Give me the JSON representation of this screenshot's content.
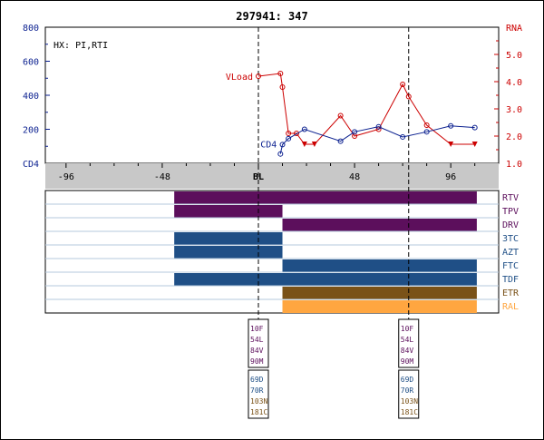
{
  "title": "297941: 347",
  "annotation": "HX: PI,RTI",
  "colors": {
    "cd4": "#0a1f8f",
    "rna": "#cc0000",
    "axis_band": "#c8c8c8",
    "grid_line": "#b4c8dc",
    "rtv": "#5c0f5c",
    "tpv": "#5c0f5c",
    "drv": "#5c0f5c",
    "tc3": "#1f4f86",
    "azt": "#1f4f86",
    "ftc": "#1f4f86",
    "tdf": "#1f4f86",
    "etr": "#7a5218",
    "ral": "#ffa640"
  },
  "chart_data": {
    "type": "line",
    "title": "297941: 347",
    "x_ticks": [
      "-96",
      "-48",
      "BL",
      "48",
      "96"
    ],
    "xlim": [
      -105,
      120
    ],
    "left_axis": {
      "name": "CD4",
      "ticks": [
        "800",
        "600",
        "400",
        "200",
        "CD4"
      ],
      "ylim": [
        0,
        800
      ]
    },
    "right_axis": {
      "name": "RNA",
      "ticks": [
        "RNA",
        "5.0",
        "4.0",
        "3.0",
        "2.0",
        "1.0"
      ],
      "ylim": [
        1.0,
        6.0
      ]
    },
    "series": [
      {
        "name": "VLoad",
        "axis": "right",
        "points": [
          [
            0,
            4.2
          ],
          [
            11,
            4.3
          ],
          [
            12,
            3.8
          ],
          [
            15,
            2.1
          ],
          [
            19,
            2.1
          ],
          [
            23,
            1.7
          ],
          [
            28,
            1.7
          ],
          [
            41,
            2.75
          ],
          [
            48,
            2.0
          ],
          [
            60,
            2.25
          ],
          [
            72,
            3.9
          ],
          [
            75,
            3.45
          ],
          [
            84,
            2.4
          ],
          [
            96,
            1.7
          ],
          [
            108,
            1.7
          ]
        ]
      },
      {
        "name": "CD4",
        "axis": "left",
        "points": [
          [
            11,
            55
          ],
          [
            12,
            110
          ],
          [
            15,
            145
          ],
          [
            23,
            200
          ],
          [
            41,
            130
          ],
          [
            48,
            185
          ],
          [
            60,
            215
          ],
          [
            72,
            155
          ],
          [
            84,
            185
          ],
          [
            96,
            220
          ],
          [
            108,
            210
          ]
        ]
      }
    ],
    "markers": [
      {
        "x": 0,
        "label_top": [
          "10F",
          "54L",
          "84V",
          "90M"
        ],
        "label_bottom": [
          "69D",
          "70R",
          "103N",
          "181C"
        ]
      },
      {
        "x": 75,
        "label_top": [
          "10F",
          "54L",
          "84V",
          "90M"
        ],
        "label_bottom": [
          "69D",
          "70R",
          "103N",
          "181C"
        ]
      }
    ],
    "drugs": [
      {
        "name": "RTV",
        "color_key": "rtv",
        "start": -42,
        "end": 109
      },
      {
        "name": "TPV",
        "color_key": "tpv",
        "start": -42,
        "end": 12
      },
      {
        "name": "DRV",
        "color_key": "drv",
        "start": 12,
        "end": 109
      },
      {
        "name": "3TC",
        "color_key": "tc3",
        "start": -42,
        "end": 12
      },
      {
        "name": "AZT",
        "color_key": "azt",
        "start": -42,
        "end": 12
      },
      {
        "name": "FTC",
        "color_key": "ftc",
        "start": 12,
        "end": 109
      },
      {
        "name": "TDF",
        "color_key": "tdf",
        "start": -42,
        "end": 109
      },
      {
        "name": "ETR",
        "color_key": "etr",
        "start": 12,
        "end": 109
      },
      {
        "name": "RAL",
        "color_key": "ral",
        "start": 12,
        "end": 109
      }
    ]
  }
}
